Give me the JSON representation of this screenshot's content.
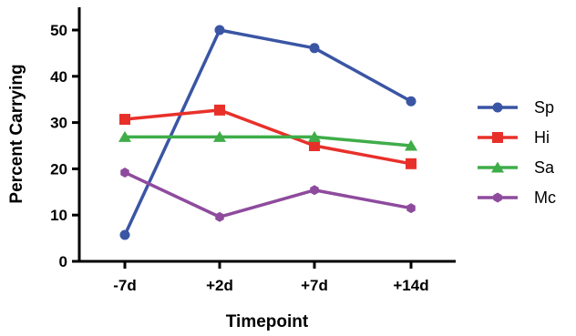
{
  "chart_data": {
    "type": "line",
    "categories": [
      "-7d",
      "+2d",
      "+7d",
      "+14d"
    ],
    "xlabel": "Timepoint",
    "ylabel": "Percent Carrying",
    "ylim": [
      0,
      55
    ],
    "yticks": [
      0,
      10,
      20,
      30,
      40,
      50
    ],
    "grid": false,
    "legend_position": "right",
    "series": [
      {
        "name": "Sp",
        "values": [
          5.7,
          50.0,
          46.1,
          34.6
        ],
        "color": "#3a55a4",
        "marker": "circle"
      },
      {
        "name": "Hi",
        "values": [
          30.7,
          32.7,
          25.0,
          21.1
        ],
        "color": "#e8302a",
        "marker": "square"
      },
      {
        "name": "Sa",
        "values": [
          26.9,
          26.9,
          26.9,
          25.0
        ],
        "color": "#3fad49",
        "marker": "triangle"
      },
      {
        "name": "Mc",
        "values": [
          19.2,
          9.6,
          15.4,
          11.5
        ],
        "color": "#8e4b9d",
        "marker": "hexagon"
      }
    ]
  }
}
